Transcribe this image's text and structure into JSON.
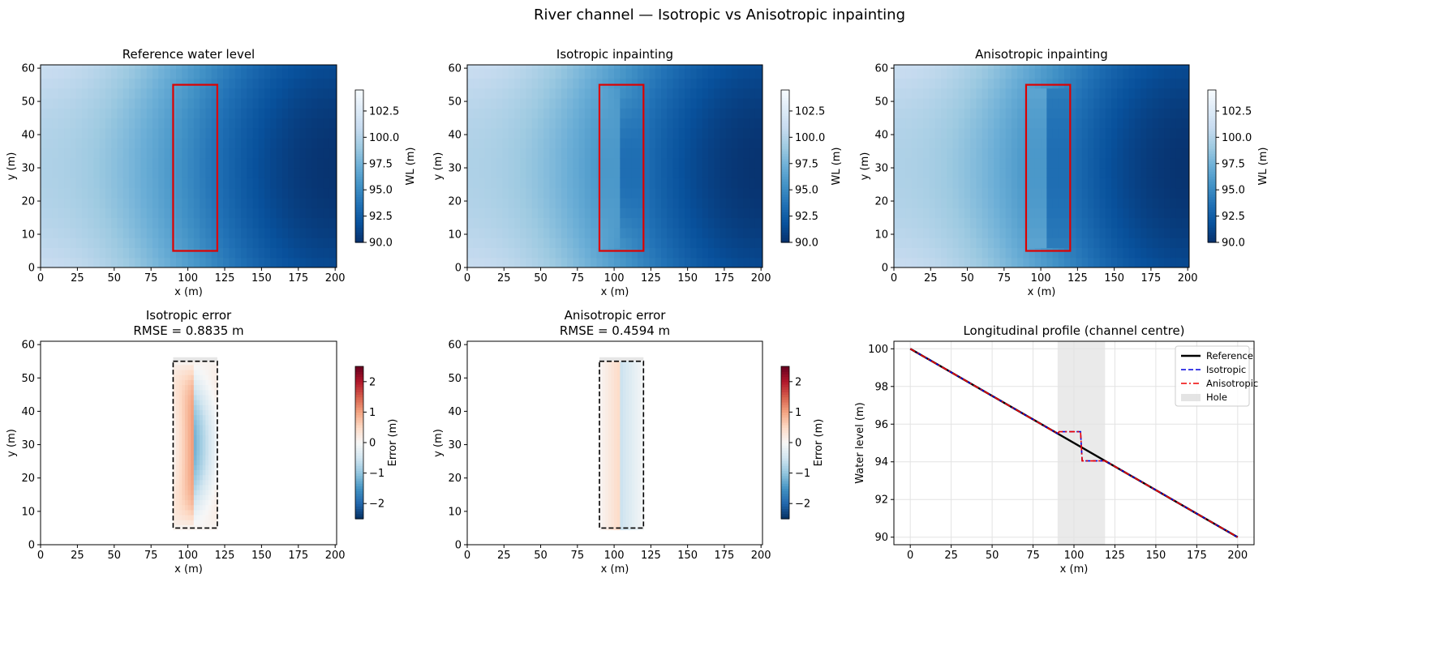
{
  "figure": {
    "suptitle": "River channel — Isotropic vs Anisotropic inpainting"
  },
  "chart_data": [
    {
      "type": "heatmap",
      "title": "Reference water level",
      "xlabel": "x (m)",
      "ylabel": "y (m)",
      "xlim": [
        0,
        201
      ],
      "ylim": [
        0,
        61
      ],
      "xticks": [
        0,
        25,
        50,
        75,
        100,
        125,
        150,
        175,
        200
      ],
      "yticks": [
        0,
        10,
        20,
        30,
        40,
        50,
        60
      ],
      "field": "reference",
      "hole": {
        "x": [
          90,
          120
        ],
        "y": [
          5,
          55
        ],
        "color": "#dd0000",
        "style": "solid"
      },
      "colorbar": {
        "label": "WL (m)",
        "colormap": "Blues_r",
        "range": [
          90,
          104.5
        ],
        "ticks": [
          90.0,
          92.5,
          95.0,
          97.5,
          100.0,
          102.5
        ]
      }
    },
    {
      "type": "heatmap",
      "title": "Isotropic inpainting",
      "xlabel": "x (m)",
      "ylabel": "y (m)",
      "xlim": [
        0,
        201
      ],
      "ylim": [
        0,
        61
      ],
      "xticks": [
        0,
        25,
        50,
        75,
        100,
        125,
        150,
        175,
        200
      ],
      "yticks": [
        0,
        10,
        20,
        30,
        40,
        50,
        60
      ],
      "field": "isotropic",
      "hole": {
        "x": [
          90,
          120
        ],
        "y": [
          5,
          55
        ],
        "color": "#dd0000",
        "style": "solid"
      },
      "colorbar": {
        "label": "WL (m)",
        "colormap": "Blues_r",
        "range": [
          90,
          104.5
        ],
        "ticks": [
          90.0,
          92.5,
          95.0,
          97.5,
          100.0,
          102.5
        ]
      }
    },
    {
      "type": "heatmap",
      "title": "Anisotropic inpainting",
      "xlabel": "x (m)",
      "ylabel": "y (m)",
      "xlim": [
        0,
        201
      ],
      "ylim": [
        0,
        61
      ],
      "xticks": [
        0,
        25,
        50,
        75,
        100,
        125,
        150,
        175,
        200
      ],
      "yticks": [
        0,
        10,
        20,
        30,
        40,
        50,
        60
      ],
      "field": "anisotropic",
      "hole": {
        "x": [
          90,
          120
        ],
        "y": [
          5,
          55
        ],
        "color": "#dd0000",
        "style": "solid"
      },
      "colorbar": {
        "label": "WL (m)",
        "colormap": "Blues_r",
        "range": [
          90,
          104.5
        ],
        "ticks": [
          90.0,
          92.5,
          95.0,
          97.5,
          100.0,
          102.5
        ]
      }
    },
    {
      "type": "heatmap",
      "title": "Isotropic error",
      "subtitle": "RMSE = 0.8835 m",
      "xlabel": "x (m)",
      "ylabel": "y (m)",
      "xlim": [
        0,
        201
      ],
      "ylim": [
        0,
        61
      ],
      "xticks": [
        0,
        25,
        50,
        75,
        100,
        125,
        150,
        175,
        200
      ],
      "yticks": [
        0,
        10,
        20,
        30,
        40,
        50,
        60
      ],
      "field": "isotropic_error",
      "hole": {
        "x": [
          90,
          120
        ],
        "y": [
          5,
          55
        ],
        "color": "#000000",
        "style": "dashed"
      },
      "colorbar": {
        "label": "Error (m)",
        "colormap": "RdBu_r",
        "range": [
          -2.5,
          2.5
        ],
        "ticks": [
          -2,
          -1,
          0,
          1,
          2
        ]
      }
    },
    {
      "type": "heatmap",
      "title": "Anisotropic error",
      "subtitle": "RMSE = 0.4594 m",
      "xlabel": "x (m)",
      "ylabel": "y (m)",
      "xlim": [
        0,
        201
      ],
      "ylim": [
        0,
        61
      ],
      "xticks": [
        0,
        25,
        50,
        75,
        100,
        125,
        150,
        175,
        200
      ],
      "yticks": [
        0,
        10,
        20,
        30,
        40,
        50,
        60
      ],
      "field": "anisotropic_error",
      "hole": {
        "x": [
          90,
          120
        ],
        "y": [
          5,
          55
        ],
        "color": "#000000",
        "style": "dashed"
      },
      "colorbar": {
        "label": "Error (m)",
        "colormap": "RdBu_r",
        "range": [
          -2.5,
          2.5
        ],
        "ticks": [
          -2,
          -1,
          0,
          1,
          2
        ]
      }
    },
    {
      "type": "line",
      "title": "Longitudinal profile (channel centre)",
      "xlabel": "x (m)",
      "ylabel": "Water level (m)",
      "xlim": [
        -10,
        210
      ],
      "ylim": [
        89.6,
        100.4
      ],
      "xticks": [
        0,
        25,
        50,
        75,
        100,
        125,
        150,
        175,
        200
      ],
      "yticks": [
        90,
        92,
        94,
        96,
        98,
        100
      ],
      "grid": true,
      "legend": "top-right",
      "hole_span": {
        "name": "Hole",
        "x": [
          90,
          119
        ],
        "color": "#d9d9d9"
      },
      "series": [
        {
          "name": "Reference",
          "color": "#000000",
          "style": "solid",
          "x": [
            0,
            200
          ],
          "y": [
            100,
            90
          ]
        },
        {
          "name": "Isotropic",
          "color": "#0000dd",
          "style": "dashed",
          "x": [
            0,
            90,
            91,
            104,
            105,
            119,
            120,
            200
          ],
          "y": [
            100,
            95.5,
            95.6,
            95.6,
            94.05,
            94.05,
            94.0,
            90
          ]
        },
        {
          "name": "Anisotropic",
          "color": "#ee0000",
          "style": "dashdot",
          "x": [
            0,
            90,
            91,
            104,
            105,
            119,
            120,
            200
          ],
          "y": [
            100,
            95.5,
            95.6,
            95.6,
            94.05,
            94.05,
            94.0,
            90
          ]
        }
      ]
    }
  ]
}
